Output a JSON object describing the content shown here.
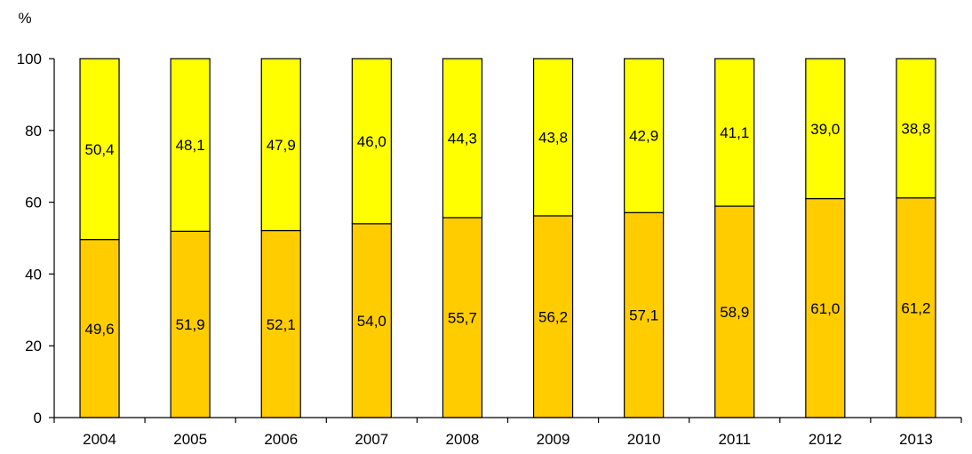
{
  "chart_data": {
    "type": "bar",
    "stacked": true,
    "title": "",
    "ylabel": "%",
    "xlabel": "",
    "ylim": [
      0,
      100
    ],
    "yticks": [
      0,
      20,
      40,
      60,
      80,
      100
    ],
    "categories": [
      "2004",
      "2005",
      "2006",
      "2007",
      "2008",
      "2009",
      "2010",
      "2011",
      "2012",
      "2013"
    ],
    "series": [
      {
        "color": "#ffcc00",
        "values": [
          49.6,
          51.9,
          52.1,
          54.0,
          55.7,
          56.2,
          57.1,
          58.9,
          61.0,
          61.2
        ],
        "labels": [
          "49,6",
          "51,9",
          "52,1",
          "54,0",
          "55,7",
          "56,2",
          "57,1",
          "58,9",
          "61,0",
          "61,2"
        ]
      },
      {
        "color": "#ffff00",
        "values": [
          50.4,
          48.1,
          47.9,
          46.0,
          44.3,
          43.8,
          42.9,
          41.1,
          39.0,
          38.8
        ],
        "labels": [
          "50,4",
          "48,1",
          "47,9",
          "46,0",
          "44,3",
          "43,8",
          "42,9",
          "41,1",
          "39,0",
          "38,8"
        ]
      }
    ],
    "grid": false,
    "legend": "none"
  }
}
